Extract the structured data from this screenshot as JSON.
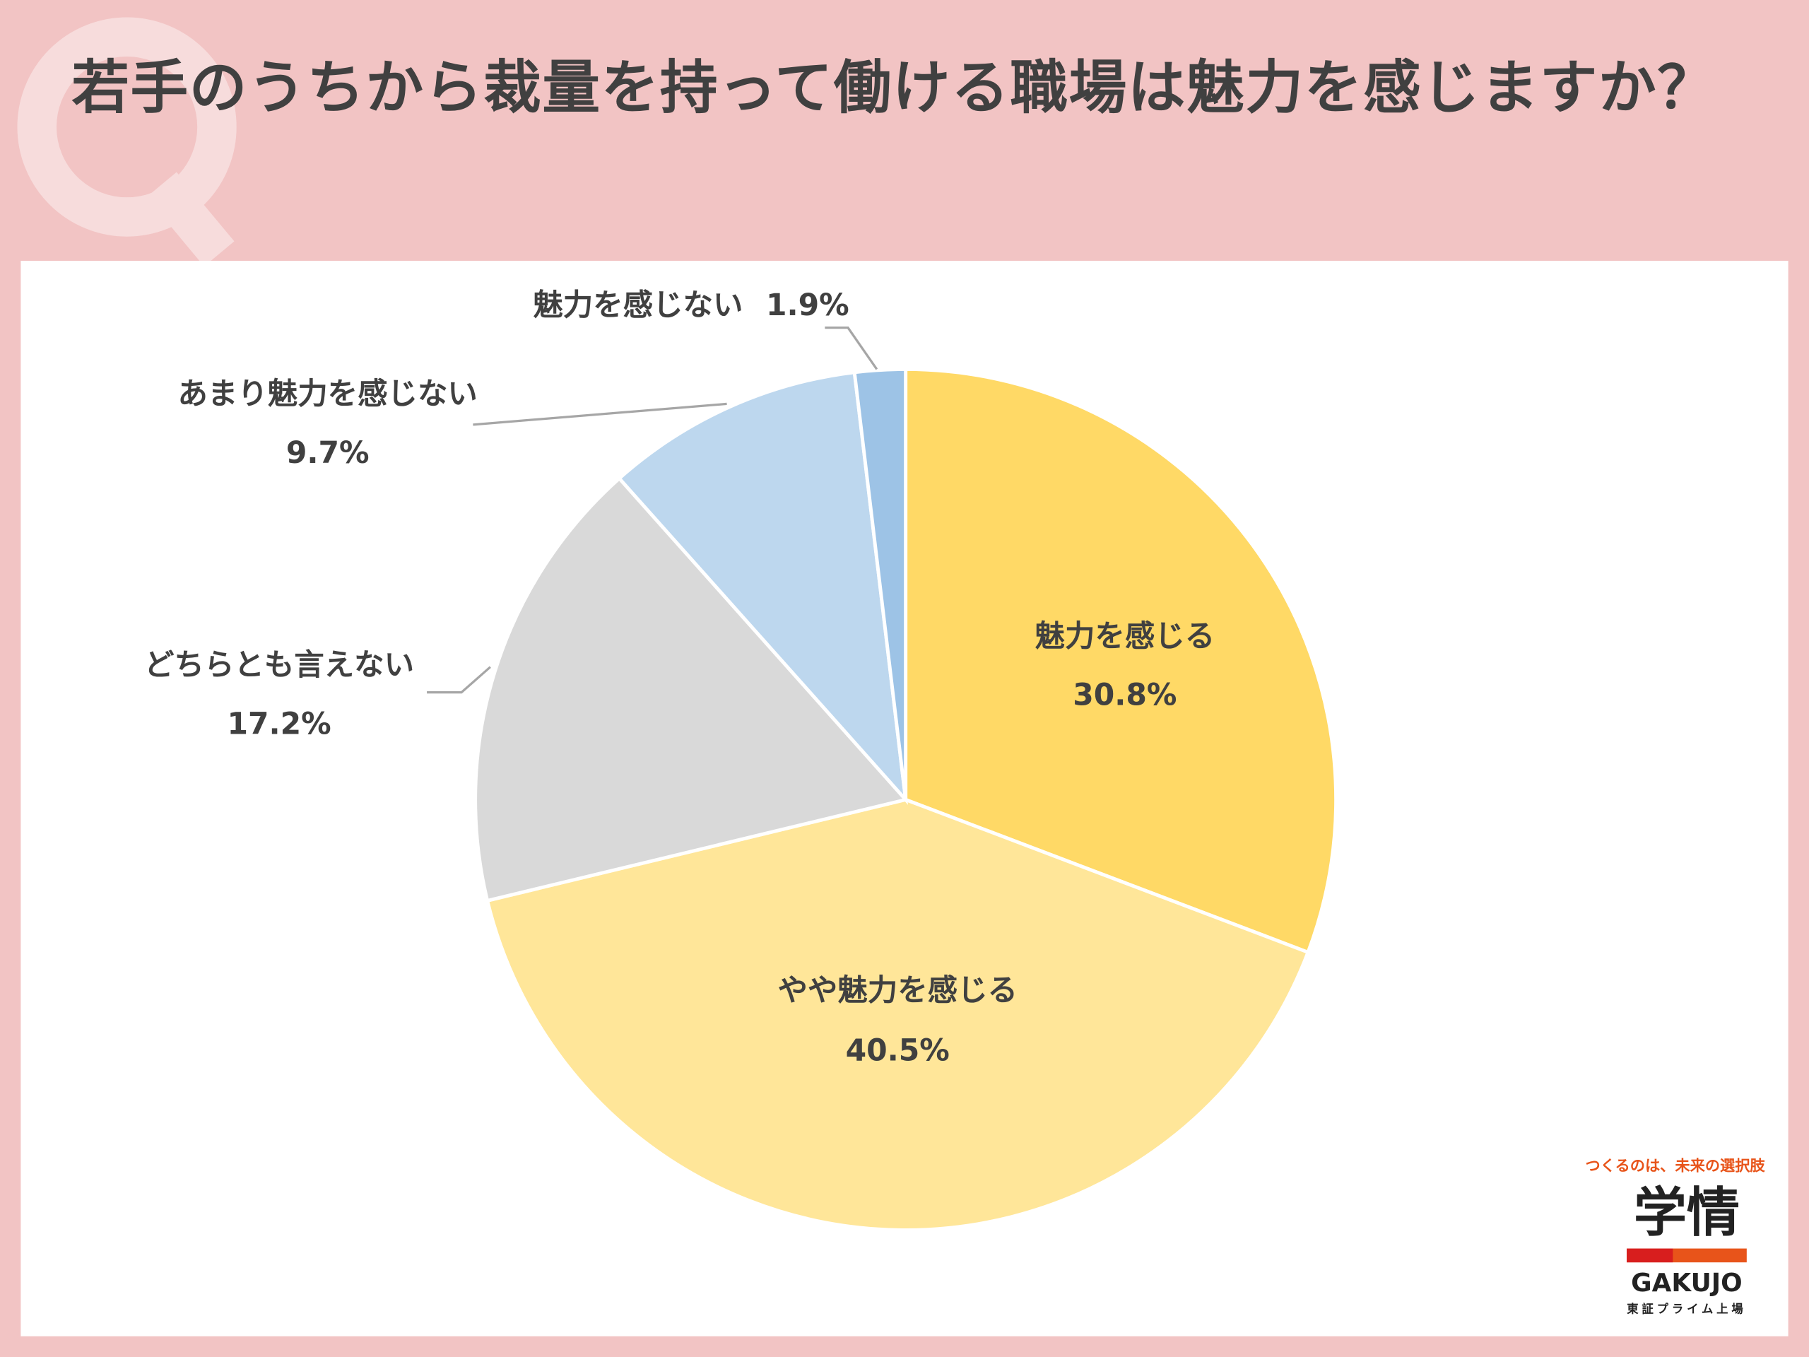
{
  "chart_data": {
    "type": "pie",
    "title": "若手のうちから裁量を持って働ける職場は魅力を感じますか？",
    "categories": [
      "魅力を感じる",
      "やや魅力を感じる",
      "どちらとも言えない",
      "あまり魅力を感じない",
      "魅力を感じない"
    ],
    "values": [
      30.8,
      40.5,
      17.2,
      9.7,
      1.9
    ],
    "value_labels": [
      "30.8%",
      "40.5%",
      "17.2%",
      "9.7%",
      "1.9%"
    ],
    "colors": [
      "#ffd966",
      "#ffe699",
      "#d9d9d9",
      "#bdd7ee",
      "#9dc3e6"
    ]
  },
  "logo": {
    "tagline": "つくるのは、未来の選択肢",
    "name": "学情",
    "roman": "GAKUJO",
    "listing": "東証プライム上場"
  }
}
